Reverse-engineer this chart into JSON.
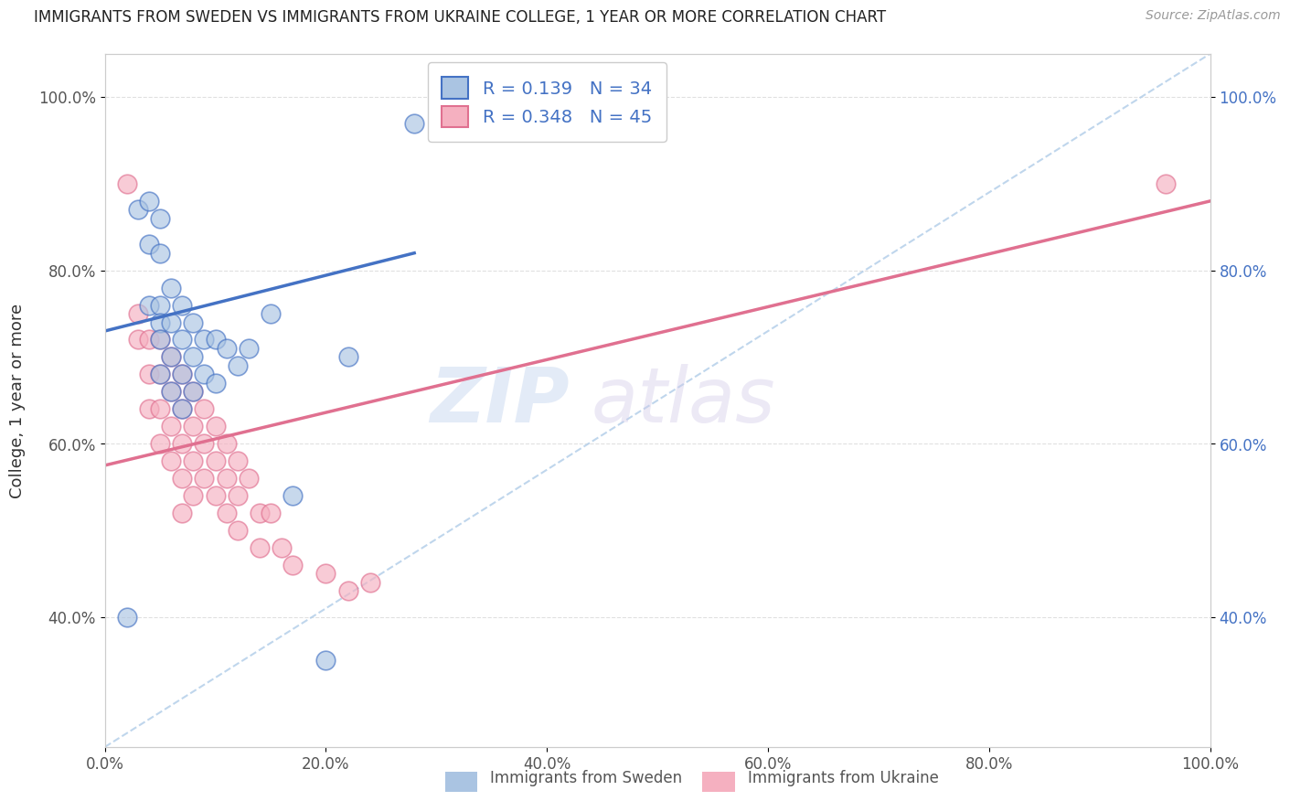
{
  "title": "IMMIGRANTS FROM SWEDEN VS IMMIGRANTS FROM UKRAINE COLLEGE, 1 YEAR OR MORE CORRELATION CHART",
  "source": "Source: ZipAtlas.com",
  "ylabel": "College, 1 year or more",
  "xlim": [
    0.0,
    1.0
  ],
  "ylim": [
    0.25,
    1.05
  ],
  "sweden_R": 0.139,
  "sweden_N": 34,
  "ukraine_R": 0.348,
  "ukraine_N": 45,
  "sweden_color": "#aac4e2",
  "ukraine_color": "#f5b0c0",
  "sweden_line_color": "#4472c4",
  "ukraine_line_color": "#e07090",
  "diag_line_color": "#b0cce8",
  "sweden_scatter_x": [
    0.02,
    0.03,
    0.04,
    0.04,
    0.04,
    0.05,
    0.05,
    0.05,
    0.05,
    0.05,
    0.05,
    0.06,
    0.06,
    0.06,
    0.06,
    0.07,
    0.07,
    0.07,
    0.07,
    0.08,
    0.08,
    0.08,
    0.09,
    0.09,
    0.1,
    0.1,
    0.11,
    0.12,
    0.13,
    0.15,
    0.17,
    0.2,
    0.22,
    0.28
  ],
  "sweden_scatter_y": [
    0.4,
    0.87,
    0.88,
    0.83,
    0.76,
    0.86,
    0.82,
    0.76,
    0.74,
    0.72,
    0.68,
    0.78,
    0.74,
    0.7,
    0.66,
    0.76,
    0.72,
    0.68,
    0.64,
    0.74,
    0.7,
    0.66,
    0.72,
    0.68,
    0.72,
    0.67,
    0.71,
    0.69,
    0.71,
    0.75,
    0.54,
    0.35,
    0.7,
    0.97
  ],
  "ukraine_scatter_x": [
    0.02,
    0.03,
    0.03,
    0.04,
    0.04,
    0.04,
    0.05,
    0.05,
    0.05,
    0.05,
    0.06,
    0.06,
    0.06,
    0.06,
    0.07,
    0.07,
    0.07,
    0.07,
    0.07,
    0.08,
    0.08,
    0.08,
    0.08,
    0.09,
    0.09,
    0.09,
    0.1,
    0.1,
    0.1,
    0.11,
    0.11,
    0.11,
    0.12,
    0.12,
    0.12,
    0.13,
    0.14,
    0.14,
    0.15,
    0.16,
    0.17,
    0.2,
    0.22,
    0.24,
    0.96
  ],
  "ukraine_scatter_y": [
    0.9,
    0.75,
    0.72,
    0.72,
    0.68,
    0.64,
    0.72,
    0.68,
    0.64,
    0.6,
    0.7,
    0.66,
    0.62,
    0.58,
    0.68,
    0.64,
    0.6,
    0.56,
    0.52,
    0.66,
    0.62,
    0.58,
    0.54,
    0.64,
    0.6,
    0.56,
    0.62,
    0.58,
    0.54,
    0.6,
    0.56,
    0.52,
    0.58,
    0.54,
    0.5,
    0.56,
    0.52,
    0.48,
    0.52,
    0.48,
    0.46,
    0.45,
    0.43,
    0.44,
    0.9
  ],
  "sweden_line_x": [
    0.0,
    0.28
  ],
  "sweden_line_y": [
    0.73,
    0.82
  ],
  "ukraine_line_x": [
    0.0,
    1.0
  ],
  "ukraine_line_y": [
    0.575,
    0.88
  ],
  "diag_line_x": [
    0.0,
    1.0
  ],
  "diag_line_y": [
    0.25,
    1.05
  ],
  "grid_color": "#e0e0e0",
  "background_color": "#ffffff",
  "xtick_positions": [
    0.0,
    0.2,
    0.4,
    0.6,
    0.8,
    1.0
  ],
  "xtick_labels": [
    "0.0%",
    "20.0%",
    "40.0%",
    "60.0%",
    "80.0%",
    "100.0%"
  ],
  "ytick_positions": [
    0.4,
    0.6,
    0.8,
    1.0
  ],
  "ytick_labels": [
    "40.0%",
    "60.0%",
    "80.0%",
    "100.0%"
  ],
  "right_ytick_positions": [
    0.4,
    0.6,
    0.8,
    1.0
  ],
  "right_ytick_labels": [
    "40.0%",
    "60.0%",
    "80.0%",
    "100.0%"
  ]
}
